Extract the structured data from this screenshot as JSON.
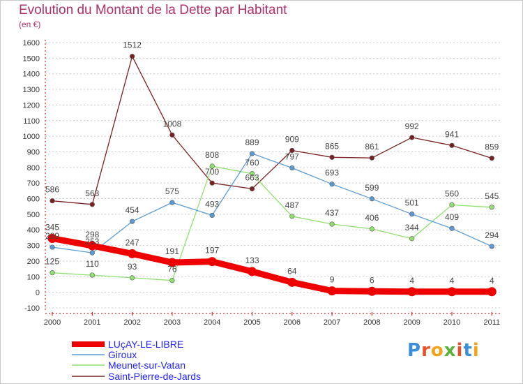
{
  "page": {
    "title": "Evolution du Montant de la Dette par Habitant",
    "subtitle": "(en €)",
    "logo_text": "Proxiti"
  },
  "colors": {
    "title": "#b0306a",
    "grid": "#cccccc",
    "legend_text": "#2222ff"
  },
  "chart_data": {
    "type": "line",
    "title": "Evolution du Montant de la Dette par Habitant",
    "subtitle": "(en €)",
    "x": [
      "2000",
      "2001",
      "2002",
      "2003",
      "2004",
      "2005",
      "2006",
      "2007",
      "2008",
      "2009",
      "2010",
      "2011"
    ],
    "ylim": [
      -100,
      1600
    ],
    "yticks": [
      -100,
      0,
      100,
      200,
      300,
      400,
      500,
      600,
      700,
      800,
      900,
      1000,
      1100,
      1200,
      1300,
      1400,
      1500,
      1600
    ],
    "grid": "horizontal dashed",
    "legend_position": "bottom-left",
    "series": [
      {
        "name": "LUçAY-LE-LIBRE",
        "color": "#ee0000",
        "bold": true,
        "values": [
          345,
          298,
          247,
          191,
          197,
          133,
          64,
          9,
          6,
          4,
          4,
          4
        ]
      },
      {
        "name": "Giroux",
        "color": "#5b9bd5",
        "values": [
          289,
          253,
          454,
          575,
          493,
          889,
          797,
          693,
          599,
          501,
          409,
          294
        ]
      },
      {
        "name": "Meunet-sur-Vatan",
        "color": "#90e070",
        "values": [
          125,
          110,
          93,
          76,
          808,
          760,
          487,
          437,
          406,
          344,
          560,
          545
        ]
      },
      {
        "name": "Saint-Pierre-de-Jards",
        "color": "#7a2020",
        "values": [
          586,
          563,
          1512,
          1008,
          700,
          663,
          909,
          865,
          861,
          992,
          941,
          859
        ]
      }
    ],
    "labels": [
      {
        "year": "2000",
        "text": "345",
        "value": 345,
        "series": 0
      },
      {
        "year": "2000",
        "text": "289",
        "value": 289,
        "series": 1
      },
      {
        "year": "2000",
        "text": "125",
        "value": 125,
        "series": 2
      },
      {
        "year": "2000",
        "text": "586",
        "value": 586,
        "series": 3
      },
      {
        "year": "2001",
        "text": "298",
        "value": 298,
        "series": 0
      },
      {
        "year": "2001",
        "text": "253",
        "value": 253,
        "series": 1
      },
      {
        "year": "2001",
        "text": "110",
        "value": 110,
        "series": 2
      },
      {
        "year": "2001",
        "text": "563",
        "value": 563,
        "series": 3
      },
      {
        "year": "2002",
        "text": "247",
        "value": 247,
        "series": 0
      },
      {
        "year": "2002",
        "text": "454",
        "value": 454,
        "series": 1
      },
      {
        "year": "2002",
        "text": "93",
        "value": 93,
        "series": 2
      },
      {
        "year": "2002",
        "text": "1512",
        "value": 1512,
        "series": 3
      },
      {
        "year": "2003",
        "text": "191",
        "value": 191,
        "series": 0
      },
      {
        "year": "2003",
        "text": "575",
        "value": 575,
        "series": 1
      },
      {
        "year": "2003",
        "text": "76",
        "value": 76,
        "series": 2
      },
      {
        "year": "2003",
        "text": "1008",
        "value": 1008,
        "series": 3
      },
      {
        "year": "2004",
        "text": "197",
        "value": 197,
        "series": 0
      },
      {
        "year": "2004",
        "text": "493",
        "value": 493,
        "series": 1
      },
      {
        "year": "2004",
        "text": "808",
        "value": 808,
        "series": 2
      },
      {
        "year": "2004",
        "text": "700",
        "value": 700,
        "series": 3
      },
      {
        "year": "2005",
        "text": "133",
        "value": 133,
        "series": 0
      },
      {
        "year": "2005",
        "text": "889",
        "value": 889,
        "series": 1
      },
      {
        "year": "2005",
        "text": "760",
        "value": 760,
        "series": 2
      },
      {
        "year": "2005",
        "text": "663",
        "value": 663,
        "series": 3
      },
      {
        "year": "2006",
        "text": "64",
        "value": 64,
        "series": 0
      },
      {
        "year": "2006",
        "text": "797",
        "value": 797,
        "series": 1
      },
      {
        "year": "2006",
        "text": "487",
        "value": 487,
        "series": 2
      },
      {
        "year": "2006",
        "text": "909",
        "value": 909,
        "series": 3
      },
      {
        "year": "2007",
        "text": "9",
        "value": 9,
        "series": 0
      },
      {
        "year": "2007",
        "text": "693",
        "value": 693,
        "series": 1
      },
      {
        "year": "2007",
        "text": "437",
        "value": 437,
        "series": 2
      },
      {
        "year": "2007",
        "text": "865",
        "value": 865,
        "series": 3
      },
      {
        "year": "2008",
        "text": "6",
        "value": 6,
        "series": 0
      },
      {
        "year": "2008",
        "text": "599",
        "value": 599,
        "series": 1
      },
      {
        "year": "2008",
        "text": "406",
        "value": 406,
        "series": 2
      },
      {
        "year": "2008",
        "text": "861",
        "value": 861,
        "series": 3
      },
      {
        "year": "2009",
        "text": "4",
        "value": 4,
        "series": 0
      },
      {
        "year": "2009",
        "text": "501",
        "value": 501,
        "series": 1
      },
      {
        "year": "2009",
        "text": "344",
        "value": 344,
        "series": 2
      },
      {
        "year": "2009",
        "text": "992",
        "value": 992,
        "series": 3
      },
      {
        "year": "2010",
        "text": "4",
        "value": 4,
        "series": 0
      },
      {
        "year": "2010",
        "text": "409",
        "value": 409,
        "series": 1
      },
      {
        "year": "2010",
        "text": "560",
        "value": 560,
        "series": 2
      },
      {
        "year": "2010",
        "text": "941",
        "value": 941,
        "series": 3
      },
      {
        "year": "2011",
        "text": "4",
        "value": 4,
        "series": 0
      },
      {
        "year": "2011",
        "text": "294",
        "value": 294,
        "series": 1
      },
      {
        "year": "2011",
        "text": "545",
        "value": 545,
        "series": 2
      },
      {
        "year": "2011",
        "text": "859",
        "value": 859,
        "series": 3
      }
    ]
  }
}
